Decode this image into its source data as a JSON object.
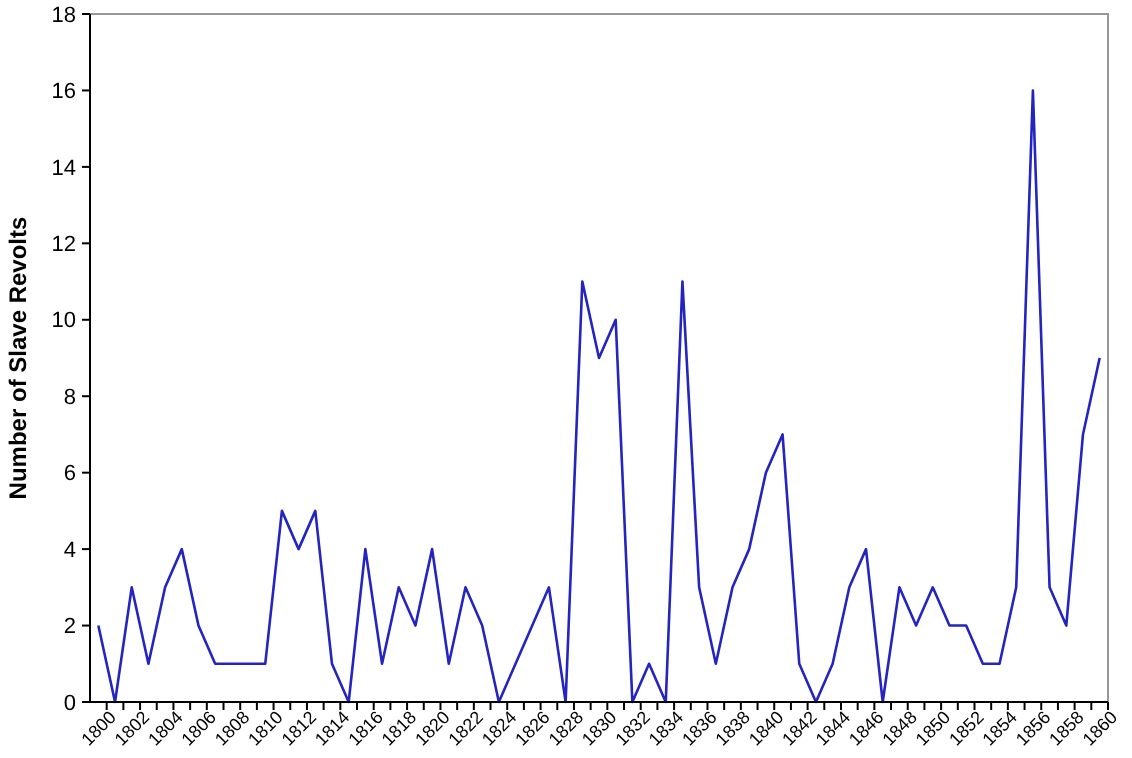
{
  "chart_data": {
    "type": "line",
    "ylabel": "Number of Slave Revolts",
    "categories": [
      "1800",
      null,
      "1802",
      null,
      "1804",
      null,
      "1806",
      null,
      "1808",
      null,
      "1810",
      null,
      "1812",
      null,
      "1814",
      null,
      "1816",
      null,
      "1818",
      null,
      "1820",
      null,
      "1822",
      null,
      "1824",
      null,
      "1826",
      null,
      "1828",
      null,
      "1830",
      null,
      "1832",
      null,
      "1834",
      null,
      "1836",
      null,
      "1838",
      null,
      "1840",
      null,
      "1842",
      null,
      "1844",
      null,
      "1846",
      null,
      "1848",
      null,
      "1850",
      null,
      "1852",
      null,
      "1854",
      null,
      "1856",
      null,
      "1858",
      null,
      "1860"
    ],
    "series": [
      {
        "color": "#2424c0",
        "values": [
          2,
          0,
          3,
          1,
          3,
          4,
          2,
          1,
          1,
          1,
          1,
          5,
          4,
          5,
          1,
          0,
          4,
          1,
          3,
          2,
          4,
          1,
          3,
          2,
          0,
          1,
          2,
          3,
          0,
          11,
          9,
          10,
          0,
          1,
          0,
          11,
          3,
          1,
          3,
          4,
          6,
          7,
          1,
          0,
          1,
          3,
          4,
          0,
          3,
          2,
          3,
          2,
          2,
          1,
          1,
          3,
          16,
          3,
          2,
          7,
          9
        ]
      }
    ],
    "ylim": [
      0,
      18
    ],
    "yticks": [
      0,
      2,
      4,
      6,
      8,
      10,
      12,
      14,
      16,
      18
    ],
    "grid": false,
    "marker": "none",
    "line_style": "solid"
  }
}
